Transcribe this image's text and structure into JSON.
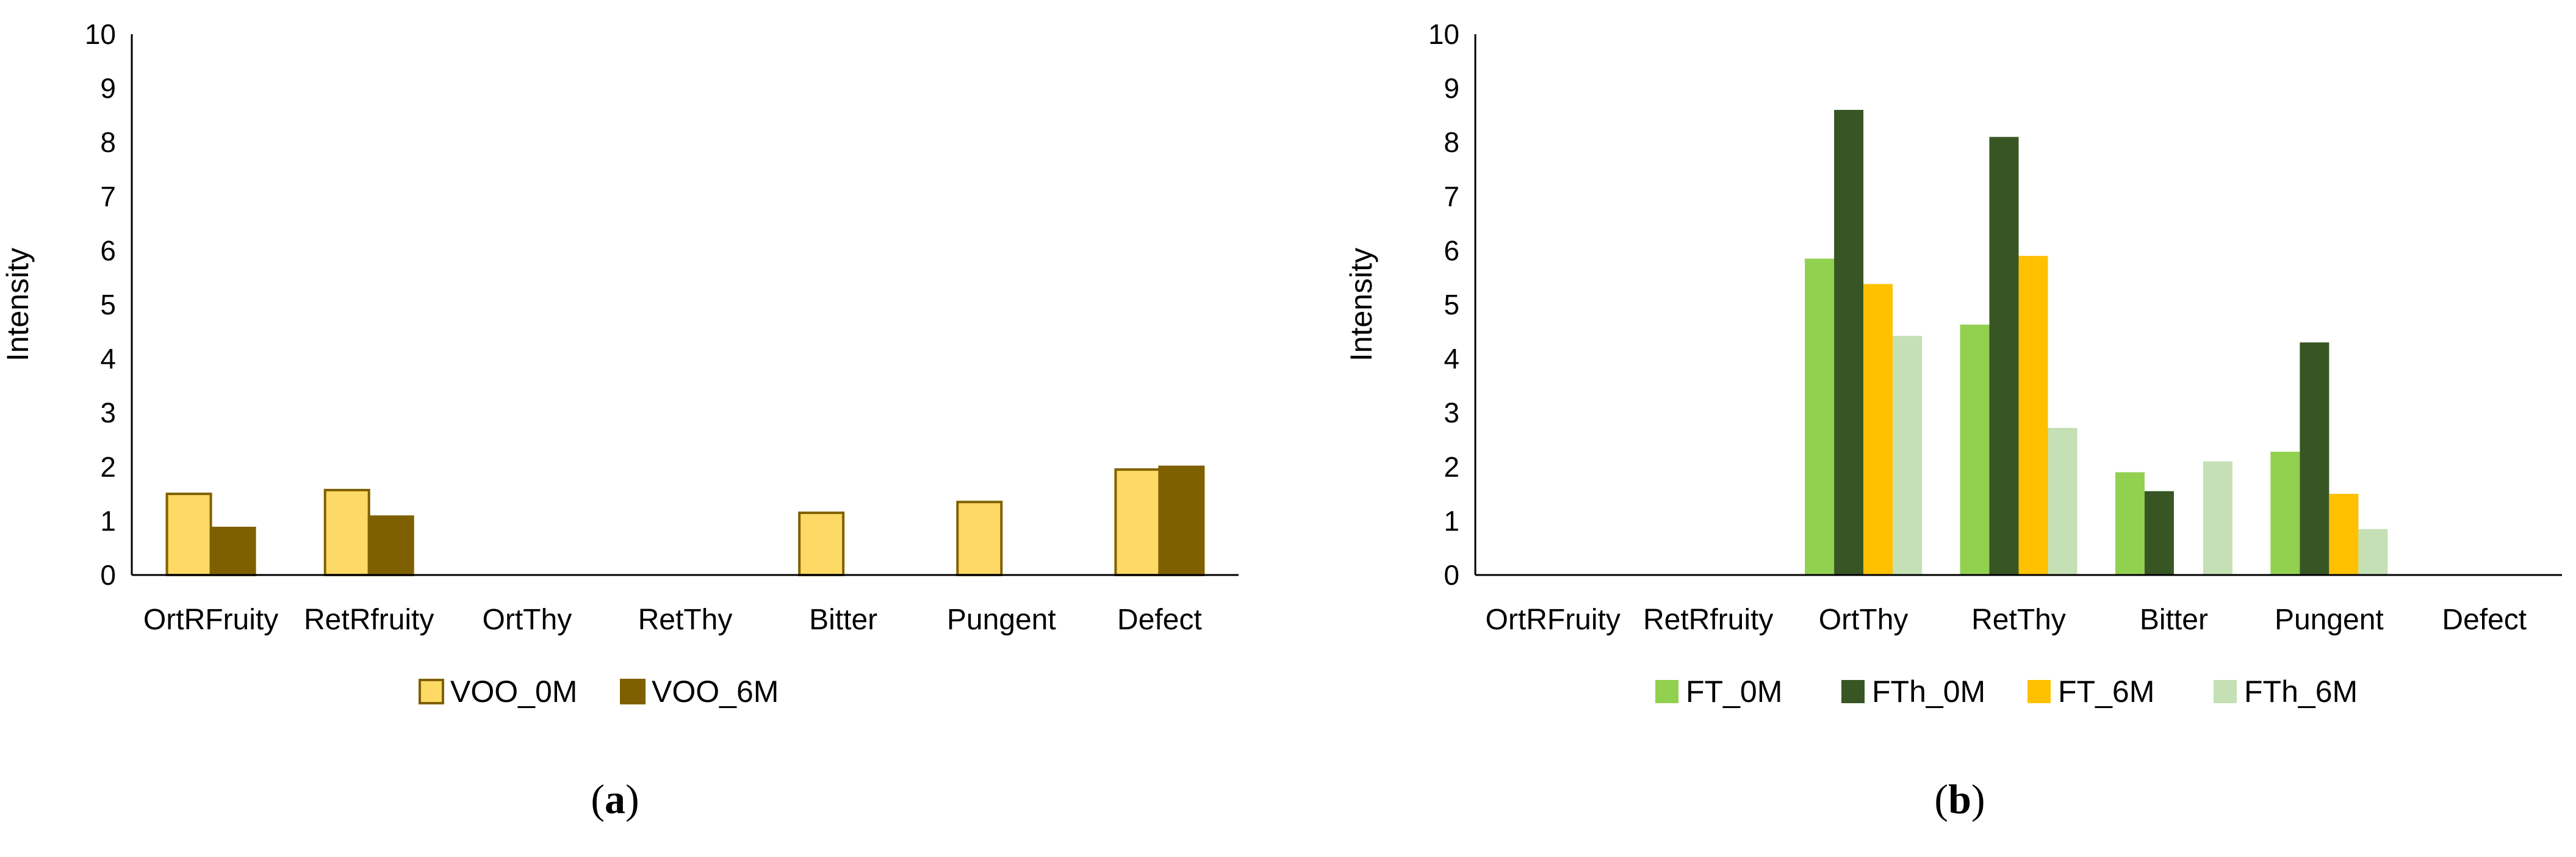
{
  "chart_data": [
    {
      "type": "bar",
      "panel_label": "a",
      "categories": [
        "OrtRFruity",
        "RetRfruity",
        "OrtThy",
        "RetThy",
        "Bitter",
        "Pungent",
        "Defect"
      ],
      "ylabel": "Intensity",
      "ylim": [
        0,
        10
      ],
      "yticks": [
        "0",
        "1",
        "2",
        "3",
        "4",
        "5",
        "6",
        "7",
        "8",
        "9",
        "10"
      ],
      "grid": false,
      "legend_position": "bottom",
      "series": [
        {
          "name": "VOO_0M",
          "color": "#FFD966",
          "stroke": "#7F6000",
          "values": [
            1.5,
            1.57,
            0,
            0,
            1.15,
            1.35,
            1.95
          ]
        },
        {
          "name": "VOO_6M",
          "color": "#7F6000",
          "stroke": "#7F6000",
          "values": [
            0.87,
            1.08,
            0,
            0,
            0,
            0,
            2.0
          ]
        }
      ]
    },
    {
      "type": "bar",
      "panel_label": "b",
      "categories": [
        "OrtRFruity",
        "RetRfruity",
        "OrtThy",
        "RetThy",
        "Bitter",
        "Pungent",
        "Defect"
      ],
      "ylabel": "Intensity",
      "ylim": [
        0,
        10
      ],
      "yticks": [
        "0",
        "1",
        "2",
        "3",
        "4",
        "5",
        "6",
        "7",
        "8",
        "9",
        "10"
      ],
      "grid": false,
      "legend_position": "bottom",
      "series": [
        {
          "name": "FT_0M",
          "color": "#92D050",
          "stroke": "none",
          "values": [
            0,
            0,
            5.85,
            4.63,
            1.9,
            2.28,
            0
          ]
        },
        {
          "name": "FTh_0M",
          "color": "#375623",
          "stroke": "none",
          "values": [
            0,
            0,
            8.6,
            8.1,
            1.55,
            4.3,
            0
          ]
        },
        {
          "name": "FT_6M",
          "color": "#FFC000",
          "stroke": "none",
          "values": [
            0,
            0,
            5.38,
            5.9,
            0,
            1.5,
            0
          ]
        },
        {
          "name": "FTh_6M",
          "color": "#C5E0B4",
          "stroke": "none",
          "values": [
            0,
            0,
            4.42,
            2.72,
            2.1,
            0.85,
            0
          ]
        }
      ]
    }
  ]
}
